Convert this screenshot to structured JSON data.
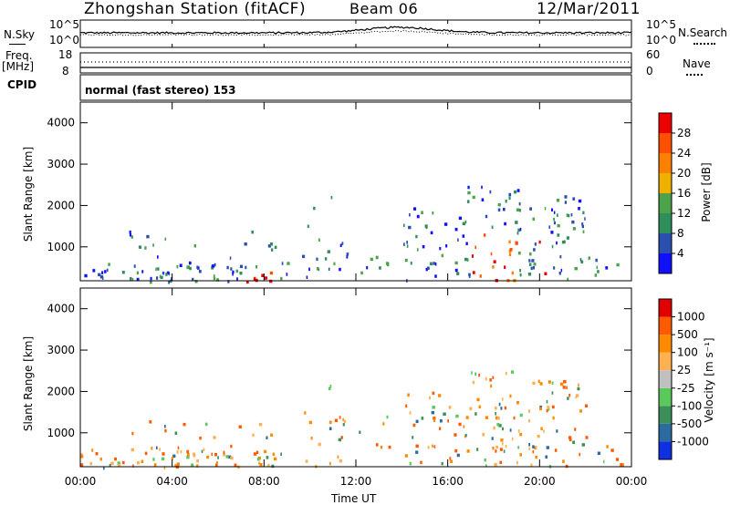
{
  "header": {
    "station": "Zhongshan Station (fitACF)",
    "beam": "Beam 06",
    "date": "12/Mar/2011"
  },
  "strip_nsky": {
    "left_label": "N.Sky",
    "left_ticks": [
      "10^5",
      "10^0"
    ],
    "right_label": "N.Search",
    "right_ticks": [
      "10^5",
      "10^0"
    ]
  },
  "strip_freq": {
    "left_label": "Freq.",
    "left_unit": "[MHz]",
    "left_ticks": [
      "18",
      "8"
    ],
    "right_label": "Nave",
    "right_ticks": [
      "60",
      "0"
    ]
  },
  "cpid": {
    "label": "CPID",
    "mode": "normal (fast stereo) 153"
  },
  "chart_data": [
    {
      "type": "heatmap",
      "ylabel": "Slant Range [km]",
      "xlabel": "",
      "ylim": [
        180,
        4500
      ],
      "yticks": [
        "1000",
        "2000",
        "3000",
        "4000"
      ],
      "colorbar_label": "Power [dB]",
      "colorbar_ticks": [
        "4",
        "8",
        "12",
        "16",
        "20",
        "24",
        "28"
      ],
      "colorbar_colors": [
        "#1010ff",
        "#2a4fb0",
        "#2e8f5a",
        "#4ca34c",
        "#f0b000",
        "#ff8000",
        "#ff5000",
        "#ee0000"
      ]
    },
    {
      "type": "heatmap",
      "ylabel": "Slant Range [km]",
      "xlabel": "Time UT",
      "ylim": [
        180,
        4500
      ],
      "yticks": [
        "1000",
        "2000",
        "3000",
        "4000"
      ],
      "xticks": [
        "00:00",
        "04:00",
        "08:00",
        "12:00",
        "16:00",
        "20:00",
        "00:00"
      ],
      "colorbar_label": "Velocity [m s⁻¹]",
      "colorbar_ticks": [
        "1000",
        "500",
        "100",
        "25",
        "-25",
        "-100",
        "-500",
        "-1000"
      ],
      "colorbar_colors": [
        "#1030e0",
        "#2d6aa0",
        "#3a8f5a",
        "#5bc85b",
        "#c0c0c0",
        "#ffb050",
        "#ff8a00",
        "#ff5a00",
        "#e00000"
      ]
    }
  ]
}
